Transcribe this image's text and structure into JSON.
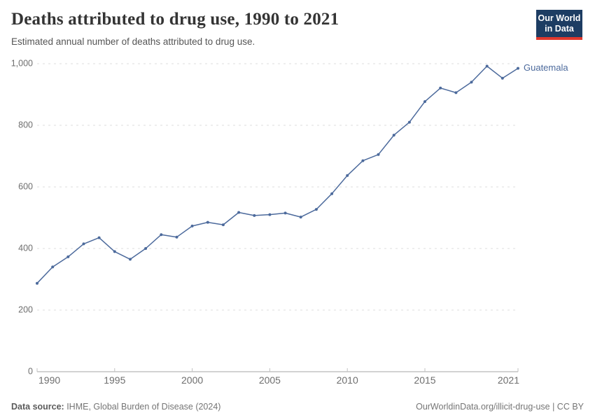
{
  "header": {
    "title": "Deaths attributed to drug use, 1990 to 2021",
    "subtitle": "Estimated annual number of deaths attributed to drug use.",
    "logo": {
      "line1": "Our World",
      "line2": "in Data"
    }
  },
  "chart_data": {
    "type": "line",
    "title": "Deaths attributed to drug use, 1990 to 2021",
    "xlabel": "",
    "ylabel": "",
    "ylim": [
      0,
      1000
    ],
    "yticks": [
      0,
      200,
      400,
      600,
      800,
      1000
    ],
    "ytick_labels": [
      "0",
      "200",
      "400",
      "600",
      "800",
      "1,000"
    ],
    "xticks": [
      1990,
      1995,
      2000,
      2005,
      2010,
      2015,
      2021
    ],
    "grid": "horizontal-dashed",
    "legend_position": "end-of-line-label",
    "x": [
      1990,
      1991,
      1992,
      1993,
      1994,
      1995,
      1996,
      1997,
      1998,
      1999,
      2000,
      2001,
      2002,
      2003,
      2004,
      2005,
      2006,
      2007,
      2008,
      2009,
      2010,
      2011,
      2012,
      2013,
      2014,
      2015,
      2016,
      2017,
      2018,
      2019,
      2020,
      2021
    ],
    "series": [
      {
        "name": "Guatemala",
        "color": "#4c6a9c",
        "values": [
          287,
          340,
          373,
          415,
          435,
          390,
          365,
          400,
          445,
          437,
          473,
          485,
          477,
          517,
          507,
          510,
          515,
          502,
          527,
          578,
          637,
          685,
          705,
          768,
          810,
          877,
          921,
          906,
          940,
          992,
          953,
          985
        ]
      }
    ]
  },
  "footer": {
    "source_label": "Data source:",
    "source_text": " IHME, Global Burden of Disease (2024)",
    "credit": "OurWorldinData.org/illicit-drug-use | CC BY"
  }
}
